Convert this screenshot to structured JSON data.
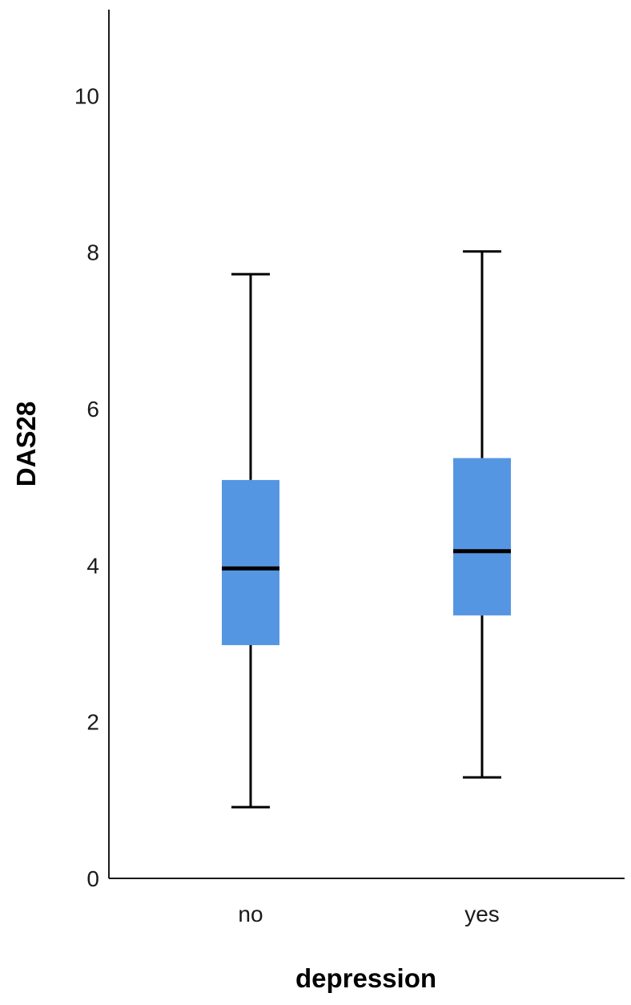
{
  "chart_data": {
    "type": "boxplot",
    "title": "",
    "xlabel": "depression",
    "ylabel": "DAS28",
    "categories": [
      "no",
      "yes"
    ],
    "ylim": [
      0,
      11.1
    ],
    "yticks": [
      0,
      2,
      4,
      6,
      8,
      10
    ],
    "ytick_labels": [
      "0",
      "2",
      "4",
      "6",
      "8",
      "10"
    ],
    "grid": false,
    "legend": "none",
    "box_color": "#5596E3",
    "median_color": "#000000",
    "whisker_color": "#000000",
    "boxes": [
      {
        "category": "no",
        "whisker_low": 0.91,
        "q1": 2.98,
        "median": 3.96,
        "q3": 5.09,
        "whisker_high": 7.72
      },
      {
        "category": "yes",
        "whisker_low": 1.29,
        "q1": 3.36,
        "median": 4.18,
        "q3": 5.37,
        "whisker_high": 8.01
      }
    ]
  }
}
